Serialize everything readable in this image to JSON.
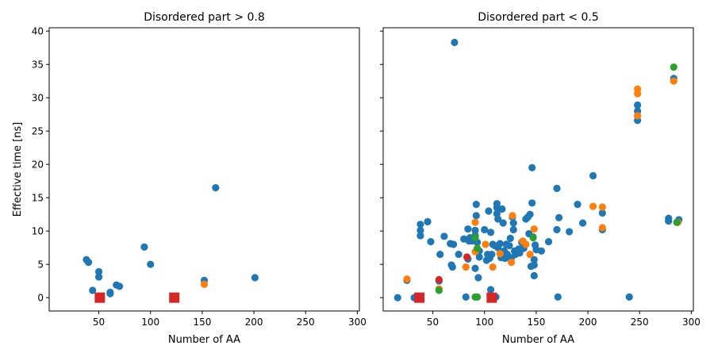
{
  "colors": {
    "blue": "#1f77b4",
    "orange": "#ff7f0e",
    "green": "#2ca02c",
    "red": "#d62728"
  },
  "chart_data": [
    {
      "type": "scatter",
      "title": "Disordered part > 0.8",
      "xlabel": "Number of AA",
      "ylabel": "Effective time [ns]",
      "xlim": [
        2,
        302
      ],
      "ylim": [
        -2,
        40.5
      ],
      "xticks": [
        50,
        100,
        150,
        200,
        250,
        300
      ],
      "yticks": [
        0,
        5,
        10,
        15,
        20,
        25,
        30,
        35,
        40
      ],
      "grid": false,
      "series": [
        {
          "color": "blue",
          "marker": "circle",
          "points": [
            [
              38,
              5.7
            ],
            [
              40,
              5.3
            ],
            [
              44,
              1.1
            ],
            [
              50,
              3.9
            ],
            [
              50,
              3.1
            ],
            [
              61,
              0.8
            ],
            [
              61,
              0.6
            ],
            [
              67,
              1.9
            ],
            [
              70,
              1.7
            ],
            [
              94,
              7.6
            ],
            [
              100,
              5.0
            ],
            [
              152,
              2.6
            ],
            [
              163,
              16.5
            ],
            [
              201,
              3.0
            ]
          ]
        },
        {
          "color": "orange",
          "marker": "circle",
          "points": [
            [
              152,
              2.0
            ]
          ]
        },
        {
          "color": "red",
          "marker": "square",
          "points": [
            [
              51,
              0.0
            ],
            [
              123,
              0.0
            ]
          ]
        }
      ]
    },
    {
      "type": "scatter",
      "title": "Disordered part < 0.5",
      "xlabel": "Number of AA",
      "ylabel": "",
      "xlim": [
        2,
        302
      ],
      "ylim": [
        -2,
        40.5
      ],
      "xticks": [
        50,
        100,
        150,
        200,
        250,
        300
      ],
      "yticks": [
        0,
        5,
        10,
        15,
        20,
        25,
        30,
        35,
        40
      ],
      "grid": false,
      "series": [
        {
          "color": "blue",
          "marker": "circle",
          "points": [
            [
              16,
              0.0
            ],
            [
              25,
              2.6
            ],
            [
              32,
              0.0
            ],
            [
              38,
              11.0
            ],
            [
              38,
              10.1
            ],
            [
              38,
              9.3
            ],
            [
              45,
              11.4
            ],
            [
              48,
              8.4
            ],
            [
              56,
              2.5
            ],
            [
              57,
              6.5
            ],
            [
              61,
              9.2
            ],
            [
              67,
              8.1
            ],
            [
              68,
              4.9
            ],
            [
              69,
              4.6
            ],
            [
              70,
              8.0
            ],
            [
              71,
              38.3
            ],
            [
              75,
              6.5
            ],
            [
              80,
              8.8
            ],
            [
              82,
              0.1
            ],
            [
              84,
              10.3
            ],
            [
              84,
              5.8
            ],
            [
              85,
              8.5
            ],
            [
              86,
              9.0
            ],
            [
              88,
              8.5
            ],
            [
              91,
              10.1
            ],
            [
              91,
              9.3
            ],
            [
              91,
              4.4
            ],
            [
              92,
              14.0
            ],
            [
              92,
              12.3
            ],
            [
              93,
              8.3
            ],
            [
              94,
              3.0
            ],
            [
              95,
              7.0
            ],
            [
              95,
              6.1
            ],
            [
              100,
              10.2
            ],
            [
              102,
              5.6
            ],
            [
              103,
              6.5
            ],
            [
              104,
              13.0
            ],
            [
              105,
              5.9
            ],
            [
              106,
              9.8
            ],
            [
              106,
              1.2
            ],
            [
              107,
              6.5
            ],
            [
              108,
              8.0
            ],
            [
              110,
              7.8
            ],
            [
              111,
              0.1
            ],
            [
              112,
              14.1
            ],
            [
              112,
              13.5
            ],
            [
              112,
              12.6
            ],
            [
              113,
              7.5
            ],
            [
              113,
              11.8
            ],
            [
              115,
              8.1
            ],
            [
              116,
              6.0
            ],
            [
              117,
              13.3
            ],
            [
              118,
              11.2
            ],
            [
              119,
              7.0
            ],
            [
              120,
              5.9
            ],
            [
              121,
              8.0
            ],
            [
              122,
              6.5
            ],
            [
              124,
              7.8
            ],
            [
              125,
              8.9
            ],
            [
              126,
              6.0
            ],
            [
              127,
              12.1
            ],
            [
              128,
              11.2
            ],
            [
              128,
              10.2
            ],
            [
              129,
              7.0
            ],
            [
              130,
              6.5
            ],
            [
              132,
              6.9
            ],
            [
              133,
              7.3
            ],
            [
              134,
              6.7
            ],
            [
              136,
              8.3
            ],
            [
              138,
              7.4
            ],
            [
              140,
              11.8
            ],
            [
              142,
              12.1
            ],
            [
              143,
              9.6
            ],
            [
              144,
              12.5
            ],
            [
              145,
              4.7
            ],
            [
              146,
              19.5
            ],
            [
              146,
              14.2
            ],
            [
              147,
              9.1
            ],
            [
              148,
              5.7
            ],
            [
              148,
              3.3
            ],
            [
              148,
              4.9
            ],
            [
              149,
              7.9
            ],
            [
              150,
              7.2
            ],
            [
              155,
              7.0
            ],
            [
              162,
              8.4
            ],
            [
              170,
              16.4
            ],
            [
              170,
              10.2
            ],
            [
              171,
              0.1
            ],
            [
              172,
              12.0
            ],
            [
              182,
              9.9
            ],
            [
              190,
              14.0
            ],
            [
              195,
              11.2
            ],
            [
              205,
              18.3
            ],
            [
              214,
              12.7
            ],
            [
              214,
              10.2
            ],
            [
              240,
              0.1
            ],
            [
              248,
              28.9
            ],
            [
              248,
              28.0
            ],
            [
              248,
              27.3
            ],
            [
              248,
              26.6
            ],
            [
              278,
              11.9
            ],
            [
              278,
              11.5
            ],
            [
              283,
              32.9
            ],
            [
              288,
              11.7
            ]
          ]
        },
        {
          "color": "orange",
          "marker": "circle",
          "points": [
            [
              25,
              2.8
            ],
            [
              56,
              1.3
            ],
            [
              82,
              4.6
            ],
            [
              91,
              11.3
            ],
            [
              91,
              6.9
            ],
            [
              101,
              8.0
            ],
            [
              108,
              4.6
            ],
            [
              115,
              6.6
            ],
            [
              126,
              5.3
            ],
            [
              127,
              12.3
            ],
            [
              137,
              8.5
            ],
            [
              140,
              8.0
            ],
            [
              144,
              6.5
            ],
            [
              148,
              10.3
            ],
            [
              205,
              13.7
            ],
            [
              214,
              13.6
            ],
            [
              214,
              10.5
            ],
            [
              248,
              31.3
            ],
            [
              248,
              30.6
            ],
            [
              248,
              27.3
            ],
            [
              283,
              32.5
            ],
            [
              287,
              11.3
            ]
          ]
        },
        {
          "color": "green",
          "marker": "circle",
          "points": [
            [
              56,
              1.1
            ],
            [
              91,
              9.0
            ],
            [
              91,
              0.1
            ],
            [
              93,
              0.1
            ],
            [
              93,
              7.4
            ],
            [
              147,
              9.0
            ],
            [
              283,
              34.6
            ],
            [
              286,
              11.3
            ]
          ]
        },
        {
          "color": "red",
          "marker": "circle",
          "points": [
            [
              56,
              2.7
            ],
            [
              83,
              6.1
            ]
          ]
        },
        {
          "color": "red",
          "marker": "square",
          "points": [
            [
              37,
              0.0
            ],
            [
              107,
              0.0
            ]
          ]
        }
      ]
    }
  ]
}
